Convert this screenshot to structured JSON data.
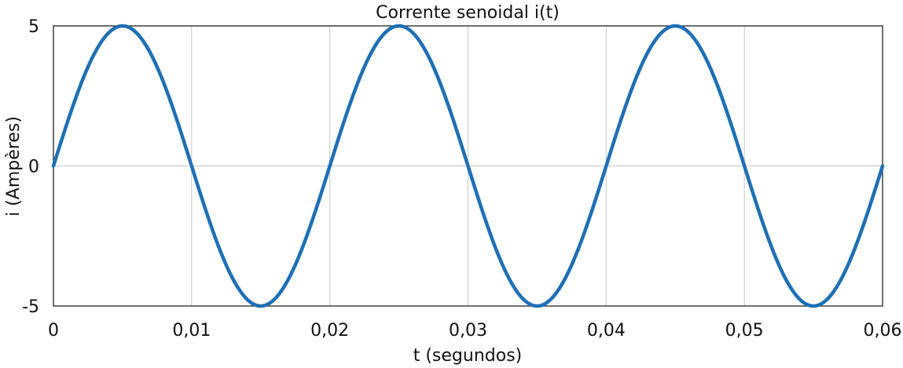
{
  "chart_data": {
    "type": "line",
    "title": "Corrente senoidal i(t)",
    "xlabel": "t (segundos)",
    "ylabel": "i (Ampères)",
    "xlim": [
      0,
      0.06
    ],
    "ylim": [
      -5,
      5
    ],
    "xticks": [
      0,
      0.01,
      0.02,
      0.03,
      0.04,
      0.05,
      0.06
    ],
    "xtick_labels": [
      "0",
      "0,01",
      "0,02",
      "0,03",
      "0,04",
      "0,05",
      "0,06"
    ],
    "yticks": [
      -5,
      0,
      5
    ],
    "ytick_labels": [
      "-5",
      "0",
      "5"
    ],
    "grid": true,
    "series": [
      {
        "amplitude": 5,
        "frequency_hz": 50,
        "x": [
          0,
          0.0025,
          0.005,
          0.0075,
          0.01,
          0.0125,
          0.015,
          0.0175,
          0.02,
          0.0225,
          0.025,
          0.0275,
          0.03,
          0.0325,
          0.035,
          0.0375,
          0.04,
          0.0425,
          0.045,
          0.0475,
          0.05,
          0.0525,
          0.055,
          0.0575,
          0.06
        ],
        "values": [
          0,
          3.54,
          5,
          3.54,
          0,
          -3.54,
          -5,
          -3.54,
          0,
          3.54,
          5,
          3.54,
          0,
          -3.54,
          -5,
          -3.54,
          0,
          3.54,
          5,
          3.54,
          0,
          -3.54,
          -5,
          -3.54,
          0
        ],
        "color": "#1f6fb4"
      }
    ]
  }
}
